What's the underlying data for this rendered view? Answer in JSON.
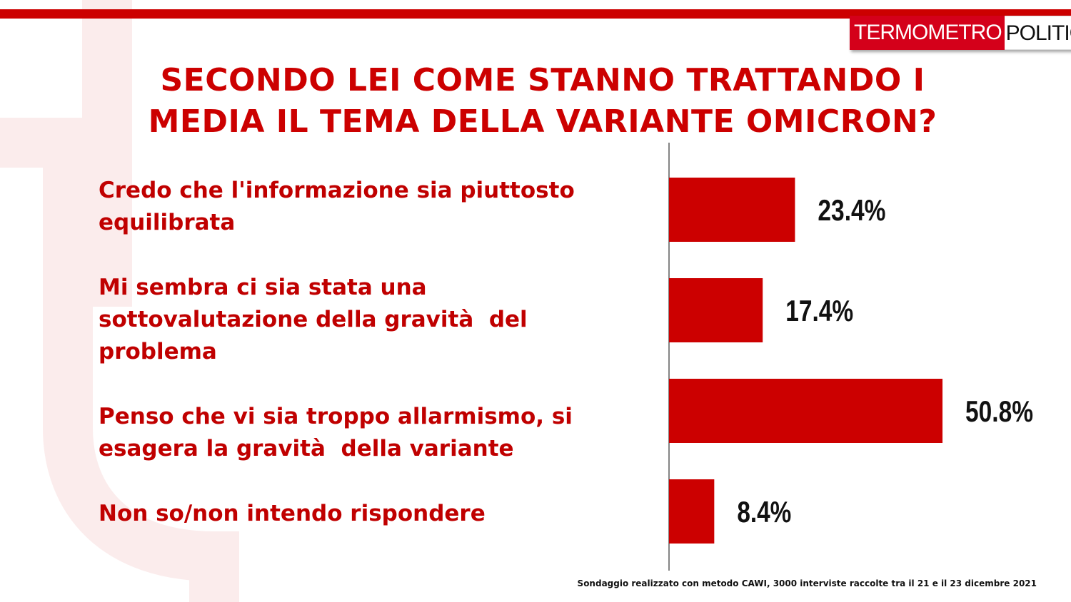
{
  "brand": {
    "logo_part1": "TERMOMETRO",
    "logo_part2": "POLITICO",
    "accent_color": "#cc0000",
    "logo_red": "#d4001a"
  },
  "title_line1": "SECONDO LEI COME STANNO TRATTANDO I",
  "title_line2": "MEDIA IL TEMA DELLA VARIANTE OMICRON?",
  "footnote": "Sondaggio realizzato con metodo CAWI, 3000 interviste raccolte tra il 21 e il 23 dicembre 2021",
  "chart_data": {
    "type": "bar",
    "orientation": "horizontal",
    "categories": [
      "Credo che l'informazione sia piuttosto equilibrata",
      "Mi sembra ci sia stata una sottovalutazione della gravità del problema",
      "Penso che vi sia troppo allarmismo, si esagera la gravità della variante",
      "Non so/non intendo rispondere"
    ],
    "values": [
      23.4,
      17.4,
      50.8,
      8.4
    ],
    "value_labels": [
      "23.4%",
      "17.4%",
      "50.8%",
      "8.4%"
    ],
    "unit": "%",
    "bar_color": "#cc0000",
    "grid": false,
    "legend": "none"
  }
}
